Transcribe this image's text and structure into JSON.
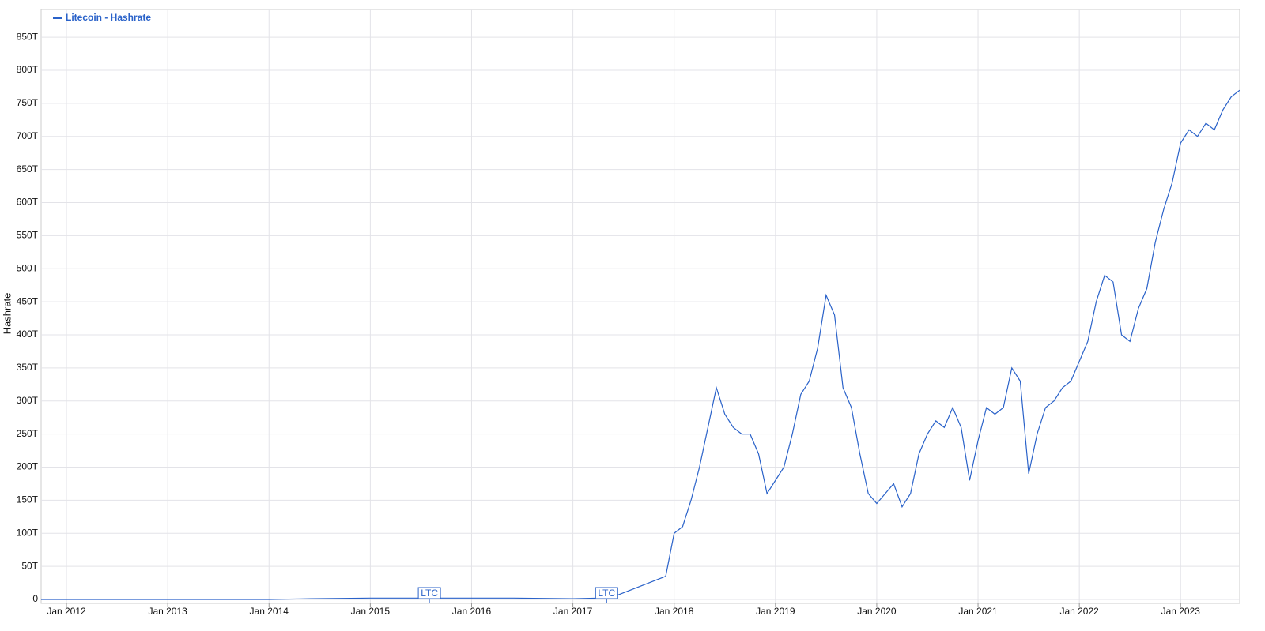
{
  "chart_data": {
    "type": "line",
    "legend_label": "Litecoin - Hashrate",
    "y_label": "Hashrate",
    "color": "#2a62c9",
    "grid": true,
    "legend_position": "top-left",
    "x": [
      "2011-10",
      "2012-06",
      "2013-01",
      "2013-06",
      "2014-01",
      "2014-06",
      "2015-01",
      "2016-01",
      "2016-06",
      "2017-01",
      "2017-04",
      "2017-06",
      "2017-08",
      "2017-10",
      "2017-12",
      "2018-01",
      "2018-02",
      "2018-03",
      "2018-04",
      "2018-05",
      "2018-06",
      "2018-07",
      "2018-08",
      "2018-09",
      "2018-10",
      "2018-11",
      "2018-12",
      "2019-01",
      "2019-02",
      "2019-03",
      "2019-04",
      "2019-05",
      "2019-06",
      "2019-07",
      "2019-08",
      "2019-09",
      "2019-10",
      "2019-11",
      "2019-12",
      "2020-01",
      "2020-02",
      "2020-03",
      "2020-04",
      "2020-05",
      "2020-06",
      "2020-07",
      "2020-08",
      "2020-09",
      "2020-10",
      "2020-11",
      "2020-12",
      "2021-01",
      "2021-02",
      "2021-03",
      "2021-04",
      "2021-05",
      "2021-06",
      "2021-07",
      "2021-08",
      "2021-09",
      "2021-10",
      "2021-11",
      "2021-12",
      "2022-01",
      "2022-02",
      "2022-03",
      "2022-04",
      "2022-05",
      "2022-06",
      "2022-07",
      "2022-08",
      "2022-09",
      "2022-10",
      "2022-11",
      "2022-12",
      "2023-01",
      "2023-02",
      "2023-03",
      "2023-04",
      "2023-05",
      "2023-06",
      "2023-07",
      "2023-08"
    ],
    "series": [
      {
        "name": "Litecoin - Hashrate",
        "color": "#2a62c9",
        "values": [
          0,
          0,
          0,
          0,
          0,
          1,
          2,
          2,
          2,
          1,
          2,
          5,
          15,
          25,
          35,
          100,
          110,
          150,
          200,
          260,
          320,
          280,
          260,
          250,
          250,
          220,
          160,
          180,
          200,
          250,
          310,
          330,
          380,
          460,
          430,
          320,
          290,
          220,
          160,
          145,
          160,
          175,
          140,
          160,
          220,
          250,
          270,
          260,
          290,
          260,
          180,
          240,
          290,
          280,
          290,
          350,
          330,
          190,
          250,
          290,
          300,
          320,
          330,
          360,
          390,
          450,
          490,
          480,
          400,
          390,
          440,
          470,
          540,
          590,
          630,
          690,
          710,
          700,
          720,
          710,
          740,
          760,
          770
        ]
      }
    ],
    "xlim": [
      "2011-10",
      "2023-08"
    ],
    "xticks": [
      {
        "value": "2012-01",
        "label": "Jan 2012"
      },
      {
        "value": "2013-01",
        "label": "Jan 2013"
      },
      {
        "value": "2014-01",
        "label": "Jan 2014"
      },
      {
        "value": "2015-01",
        "label": "Jan 2015"
      },
      {
        "value": "2016-01",
        "label": "Jan 2016"
      },
      {
        "value": "2017-01",
        "label": "Jan 2017"
      },
      {
        "value": "2018-01",
        "label": "Jan 2018"
      },
      {
        "value": "2019-01",
        "label": "Jan 2019"
      },
      {
        "value": "2020-01",
        "label": "Jan 2020"
      },
      {
        "value": "2021-01",
        "label": "Jan 2021"
      },
      {
        "value": "2022-01",
        "label": "Jan 2022"
      },
      {
        "value": "2023-01",
        "label": "Jan 2023"
      }
    ],
    "ylim": [
      -6,
      892
    ],
    "yticks": [
      0,
      {
        "value": 50,
        "label": "50T"
      },
      {
        "value": 100,
        "label": "100T"
      },
      {
        "value": 150,
        "label": "150T"
      },
      {
        "value": 200,
        "label": "200T"
      },
      {
        "value": 250,
        "label": "250T"
      },
      {
        "value": 300,
        "label": "300T"
      },
      {
        "value": 350,
        "label": "350T"
      },
      {
        "value": 400,
        "label": "400T"
      },
      {
        "value": 450,
        "label": "450T"
      },
      {
        "value": 500,
        "label": "500T"
      },
      {
        "value": 550,
        "label": "550T"
      },
      {
        "value": 600,
        "label": "600T"
      },
      {
        "value": 650,
        "label": "650T"
      },
      {
        "value": 700,
        "label": "700T"
      },
      {
        "value": 750,
        "label": "750T"
      },
      {
        "value": 800,
        "label": "800T"
      },
      {
        "value": 850,
        "label": "850T"
      }
    ],
    "annotations": [
      {
        "x": "2015-08",
        "label": "LTC"
      },
      {
        "x": "2017-05",
        "label": "LTC"
      }
    ]
  }
}
